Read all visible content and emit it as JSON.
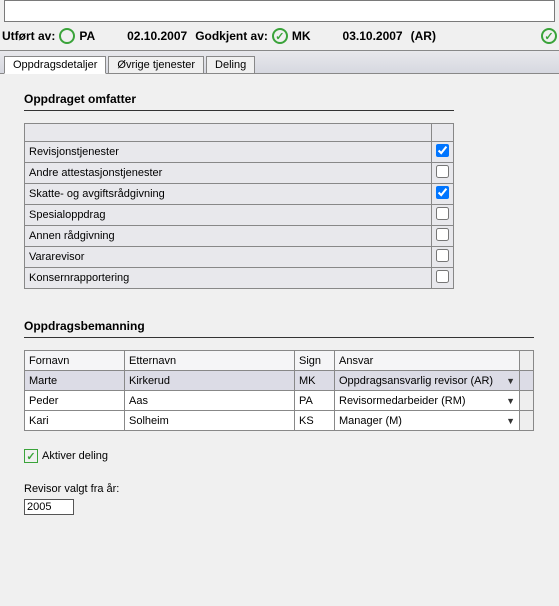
{
  "status": {
    "utfort_label": "Utført av:",
    "utfort_initials": "PA",
    "utfort_date": "02.10.2007",
    "godkjent_label": "Godkjent av:",
    "godkjent_initials": "MK",
    "godkjent_date": "03.10.2007",
    "ar_suffix": "(AR)"
  },
  "tabs": {
    "t0": "Oppdragsdetaljer",
    "t1": "Øvrige tjenester",
    "t2": "Deling"
  },
  "section1_title": "Oppdraget omfatter",
  "services": [
    {
      "label": "Revisjonstjenester",
      "checked": true
    },
    {
      "label": "Andre attestasjonstjenester",
      "checked": false
    },
    {
      "label": "Skatte- og avgiftsrådgivning",
      "checked": true
    },
    {
      "label": "Spesialoppdrag",
      "checked": false
    },
    {
      "label": "Annen rådgivning",
      "checked": false
    },
    {
      "label": "Vararevisor",
      "checked": false
    },
    {
      "label": "Konsernrapportering",
      "checked": false
    }
  ],
  "section2_title": "Oppdragsbemanning",
  "staff_headers": {
    "fornavn": "Fornavn",
    "etternavn": "Etternavn",
    "sign": "Sign",
    "ansvar": "Ansvar"
  },
  "staff": [
    {
      "fornavn": "Marte",
      "etternavn": "Kirkerud",
      "sign": "MK",
      "ansvar": "Oppdragsansvarlig revisor (AR)"
    },
    {
      "fornavn": "Peder",
      "etternavn": "Aas",
      "sign": "PA",
      "ansvar": "Revisormedarbeider (RM)"
    },
    {
      "fornavn": "Kari",
      "etternavn": "Solheim",
      "sign": "KS",
      "ansvar": "Manager (M)"
    }
  ],
  "aktiver_label": "Aktiver deling",
  "revisor_label": "Revisor valgt fra år:",
  "revisor_year": "2005"
}
